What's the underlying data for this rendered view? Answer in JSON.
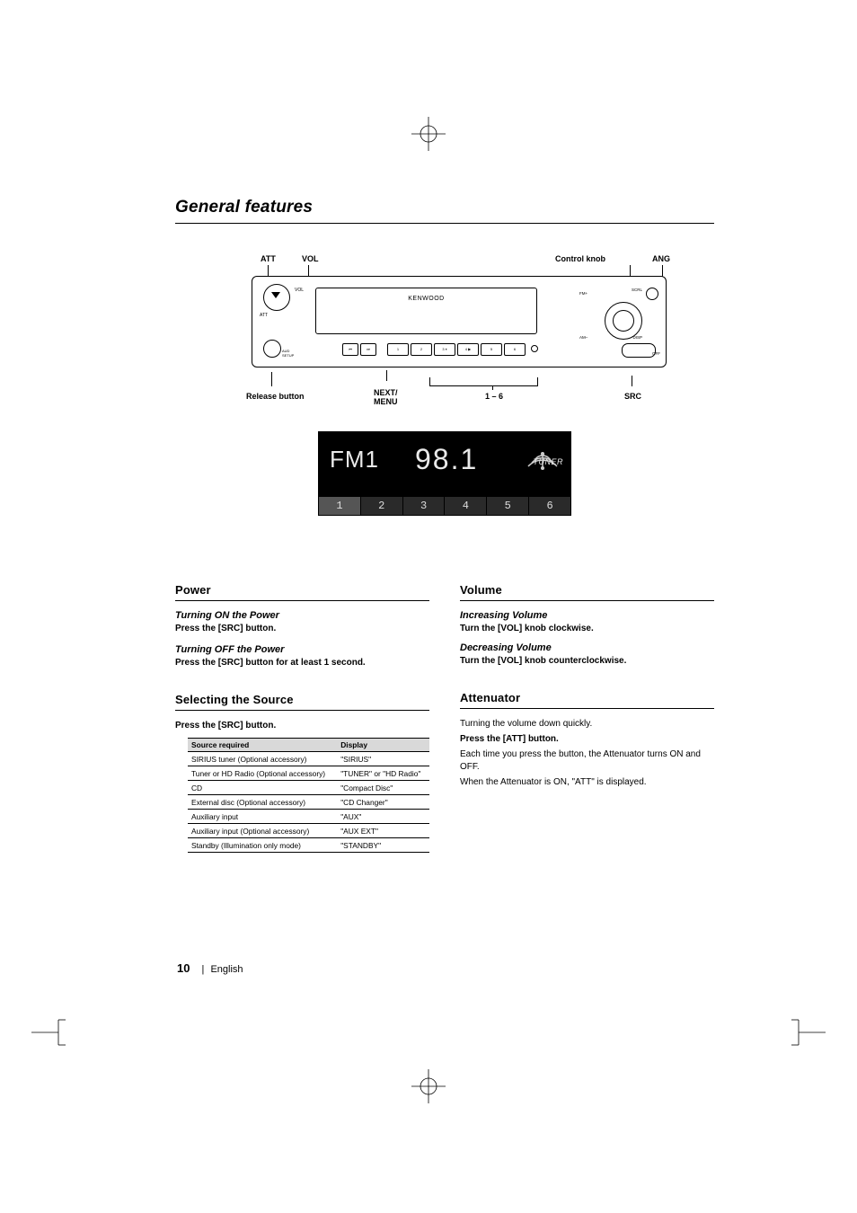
{
  "title": "General features",
  "diagram": {
    "callouts": {
      "att": "ATT",
      "vol": "VOL",
      "control_knob": "Control knob",
      "ang": "ANG",
      "release_button": "Release button",
      "next_menu_l1": "NEXT/",
      "next_menu_l2": "MENU",
      "presets": "1 – 6",
      "src": "SRC"
    },
    "faceplate": {
      "brand": "KENWOOD",
      "att_label": "ATT",
      "vol_label": "VOL",
      "pwr_label_l1": "AUD",
      "pwr_label_l2": "SETUP",
      "btn_labels": [
        "",
        "",
        "",
        "RDM",
        "",
        "REP",
        "",
        "P.SEL",
        "",
        "M.RDM"
      ],
      "right_labels": {
        "fm": "FM+",
        "am": "AM–",
        "scrl": "SCRL",
        "disp": "DISP",
        "off": "OFF"
      },
      "btn_small": [
        "AUTO",
        "AME",
        "MENU",
        "B.MODE",
        "SCAN",
        "RDM",
        "D.RDM",
        "REP",
        "P.SEL",
        "M.RDM"
      ]
    }
  },
  "lcd": {
    "band": "FM1",
    "freq": "98.1",
    "tuner_label": "TUNER",
    "presets": [
      "1",
      "2",
      "3",
      "4",
      "5",
      "6"
    ]
  },
  "sections": {
    "power": {
      "heading": "Power",
      "on_sub": "Turning ON the Power",
      "on_body": "Press the [SRC] button.",
      "off_sub": "Turning OFF the Power",
      "off_body": "Press the [SRC] button for at least 1 second."
    },
    "selecting_source": {
      "heading": "Selecting the Source",
      "lead": "Press the [SRC] button.",
      "table": {
        "col_source": "Source required",
        "col_display": "Display",
        "rows": [
          {
            "source": "SIRIUS tuner (Optional accessory)",
            "display": "\"SIRIUS\""
          },
          {
            "source": "Tuner or HD Radio (Optional accessory)",
            "display": "\"TUNER\" or \"HD Radio\""
          },
          {
            "source": "CD",
            "display": "\"Compact Disc\""
          },
          {
            "source": "External disc (Optional accessory)",
            "display": "\"CD Changer\""
          },
          {
            "source": "Auxiliary input",
            "display": "\"AUX\""
          },
          {
            "source": "Auxiliary input (Optional accessory)",
            "display": "\"AUX EXT\""
          },
          {
            "source": "Standby (Illumination only mode)",
            "display": "\"STANDBY\""
          }
        ]
      }
    },
    "volume": {
      "heading": "Volume",
      "inc_sub": "Increasing Volume",
      "inc_body": "Turn the [VOL] knob clockwise.",
      "dec_sub": "Decreasing Volume",
      "dec_body": "Turn the [VOL] knob counterclockwise."
    },
    "attenuator": {
      "heading": "Attenuator",
      "lead": "Turning the volume down quickly.",
      "step": "Press the [ATT] button.",
      "body1": "Each time you press the button, the Attenuator turns ON and OFF.",
      "body2": "When the Attenuator is ON, \"ATT\" is displayed."
    }
  },
  "footer": {
    "page": "10",
    "lang": "English"
  },
  "colors": {
    "text": "#000000",
    "lcd_bg": "#000000",
    "lcd_fg": "#eaeaea",
    "table_header_bg": "#d9d9d9"
  }
}
